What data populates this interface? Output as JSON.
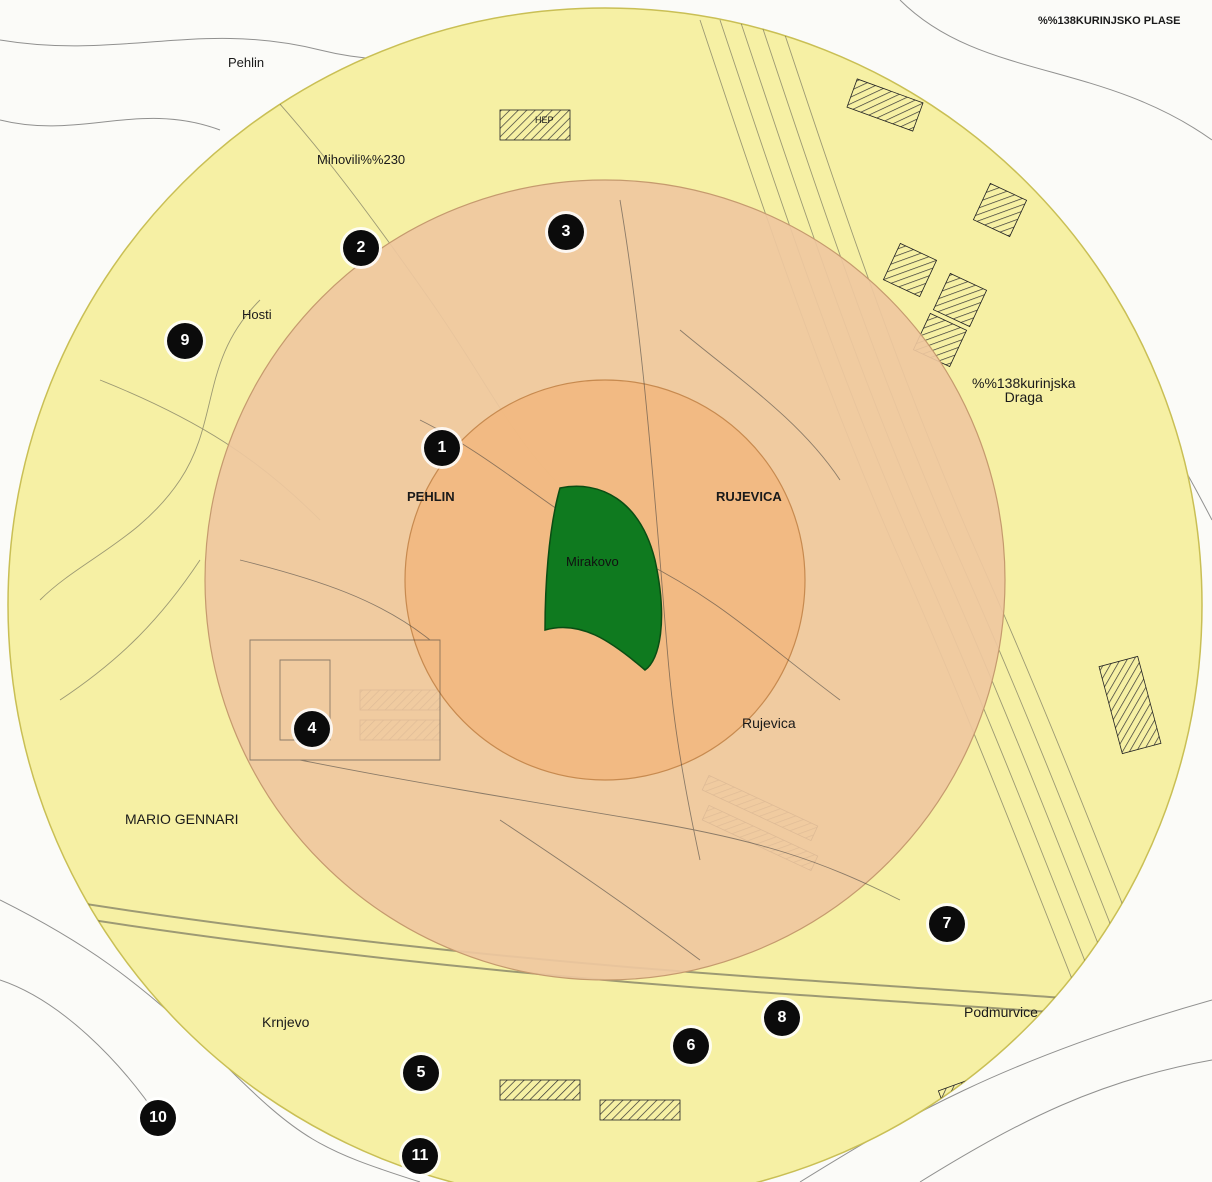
{
  "map": {
    "colors": {
      "outer_zone": "#f6f0a4",
      "middle_zone": "#efc8a0",
      "inner_zone": "#f2b880",
      "park": "#0f7a1f",
      "linework": "#2b2b2b"
    },
    "place_labels": {
      "pehlin_top": "Pehlin",
      "mihovili": "Mihovili%%230",
      "hosti": "Hosti",
      "pehlin": "PEHLIN",
      "rujevica_caps": "RUJEVICA",
      "mirakovo": "Mirakovo",
      "kurinjska_draga": "%%138kurinjska\nDraga",
      "kurinjsko_plase": "%%138KURINJSKO PLASE",
      "rujevica": "Rujevica",
      "mario_gennari": "MARIO GENNARI",
      "krnjevo": "Krnjevo",
      "podmurvice": "Podmurvice",
      "hep": "HEP"
    },
    "markers": [
      "1",
      "2",
      "3",
      "4",
      "5",
      "6",
      "7",
      "8",
      "9",
      "10",
      "11"
    ]
  }
}
